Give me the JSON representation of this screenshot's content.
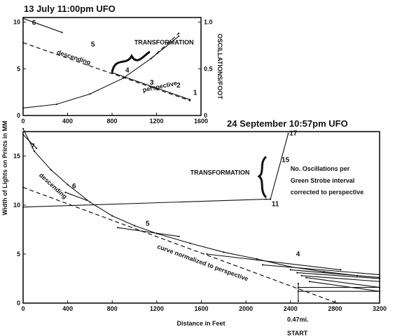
{
  "chart_data": [
    {
      "type": "line",
      "title": "13 July 11:00pm UFO",
      "xlabel": "",
      "ylabel": "",
      "y2label": "OSCILLATIONS/FOOT",
      "xlim": [
        0,
        1600
      ],
      "ylim": [
        0,
        10.5
      ],
      "y2lim": [
        0,
        1.05
      ],
      "xticks": [
        "0",
        "400",
        "800",
        "1200",
        "1600"
      ],
      "yticks": [
        "0",
        "5",
        "10"
      ],
      "y2ticks": [
        "0",
        "0.5",
        "1.0"
      ],
      "series": [
        {
          "style": "solid",
          "x": [
            0,
            350
          ],
          "y": [
            10.4,
            8.9
          ]
        },
        {
          "style": "solid",
          "x": [
            0,
            300,
            600,
            900,
            1150,
            1400
          ],
          "y": [
            0.8,
            1.2,
            2.3,
            4.0,
            6.1,
            8.5
          ]
        },
        {
          "style": "dashed",
          "x": [
            1150,
            1400
          ],
          "y": [
            6.1,
            8.8
          ]
        },
        {
          "style": "dashed",
          "x": [
            0,
            1500
          ],
          "y": [
            7.8,
            1.6
          ]
        },
        {
          "style": "solid",
          "x": [
            800,
            1500
          ],
          "y": [
            4.6,
            1.7
          ]
        }
      ],
      "annotations": [
        {
          "text": "6",
          "x": 80,
          "y": 9.7
        },
        {
          "text": "5",
          "x": 610,
          "y": 7.4
        },
        {
          "text": "descending",
          "x": 300,
          "y": 6.6
        },
        {
          "text": "TRANSFORMATION",
          "x": 1000,
          "y": 7.6
        },
        {
          "text": "4",
          "x": 920,
          "y": 4.6
        },
        {
          "text": "3",
          "x": 1140,
          "y": 3.3
        },
        {
          "text": "perspective",
          "x": 1080,
          "y": 2.5
        },
        {
          "text": "2",
          "x": 1380,
          "y": 3.0
        },
        {
          "text": "1",
          "x": 1530,
          "y": 2.2
        }
      ]
    },
    {
      "type": "line",
      "title": "24 September 10:57pm UFO",
      "xlabel": "Distance in Feet",
      "ylabel": "Width of Lights on Prints in MM",
      "xlim": [
        0,
        3200
      ],
      "ylim": [
        0,
        17.5
      ],
      "xticks": [
        "0",
        "400",
        "800",
        "1200",
        "1600",
        "2000",
        "2400",
        "2800",
        "3200"
      ],
      "yticks": [
        "0",
        "5",
        "10",
        "15"
      ],
      "series": [
        {
          "style": "solid",
          "x": [
            0,
            100,
            250,
            400,
            600,
            800,
            1000,
            1200,
            1500,
            1800,
            2100,
            2400,
            2700,
            3000,
            3200
          ],
          "y": [
            17.8,
            15.5,
            13.6,
            12.1,
            10.3,
            8.9,
            7.9,
            7.1,
            6.1,
            5.2,
            4.5,
            3.7,
            3.2,
            2.8,
            2.6
          ]
        },
        {
          "style": "dashed",
          "x": [
            0,
            2820
          ],
          "y": [
            11.8,
            0.0
          ]
        },
        {
          "style": "solid",
          "x": [
            0,
            2180,
            2220,
            2380
          ],
          "y": [
            9.8,
            10.6,
            10.6,
            17.3
          ]
        },
        {
          "style": "solid",
          "x": [
            0,
            120
          ],
          "y": [
            17.2,
            15.8
          ]
        },
        {
          "style": "solid",
          "x": [
            380,
            570
          ],
          "y": [
            11.3,
            10.5
          ]
        },
        {
          "style": "solid",
          "x": [
            850,
            1400
          ],
          "y": [
            7.7,
            6.8
          ]
        },
        {
          "style": "solid",
          "x": [
            1650,
            2850
          ],
          "y": [
            5.0,
            3.4
          ]
        },
        {
          "style": "solid",
          "x": [
            2150,
            3200
          ],
          "y": [
            3.9,
            2.9
          ]
        },
        {
          "style": "solid",
          "x": [
            2400,
            3200
          ],
          "y": [
            3.4,
            2.6
          ]
        },
        {
          "style": "solid",
          "x": [
            2460,
            3200
          ],
          "y": [
            3.1,
            2.5
          ]
        },
        {
          "style": "solid",
          "x": [
            2500,
            3200
          ],
          "y": [
            2.8,
            2.2
          ]
        },
        {
          "style": "solid",
          "x": [
            2540,
            3200
          ],
          "y": [
            2.6,
            1.6
          ]
        },
        {
          "style": "solid",
          "x": [
            2570,
            3200
          ],
          "y": [
            2.2,
            1.2
          ]
        },
        {
          "style": "solid",
          "x": [
            2470,
            3200
          ],
          "y": [
            1.2,
            1.2
          ]
        },
        {
          "style": "solid",
          "x": [
            2470,
            3200
          ],
          "y": [
            1.6,
            1.6
          ]
        },
        {
          "style": "solid",
          "x": [
            2470,
            2470
          ],
          "y": [
            2.0,
            0.2
          ]
        }
      ],
      "annotations": [
        {
          "text": "7",
          "x": 70,
          "y": 15.8
        },
        {
          "text": "descending",
          "x": 140,
          "y": 13.0
        },
        {
          "text": "6",
          "x": 440,
          "y": 11.7
        },
        {
          "text": "TRANSFORMATION",
          "x": 1500,
          "y": 13.1
        },
        {
          "text": "17",
          "x": 2390,
          "y": 17.1
        },
        {
          "text": "15",
          "x": 2320,
          "y": 14.4
        },
        {
          "text": "11",
          "x": 2230,
          "y": 9.9
        },
        {
          "text": "No. Oscillations per",
          "x": 2400,
          "y": 13.5
        },
        {
          "text": "Green Strobe interval",
          "x": 2400,
          "y": 12.3
        },
        {
          "text": "corrected to perspective",
          "x": 2400,
          "y": 11.1
        },
        {
          "text": "5",
          "x": 1100,
          "y": 7.9
        },
        {
          "text": "curve normalized to perspective",
          "x": 1200,
          "y": 5.6
        },
        {
          "text": "4",
          "x": 2450,
          "y": 4.8
        },
        {
          "text": "0.47mi.",
          "x": 2370,
          "y": -1.9
        },
        {
          "text": "START",
          "x": 2370,
          "y": -3.3
        }
      ]
    }
  ]
}
